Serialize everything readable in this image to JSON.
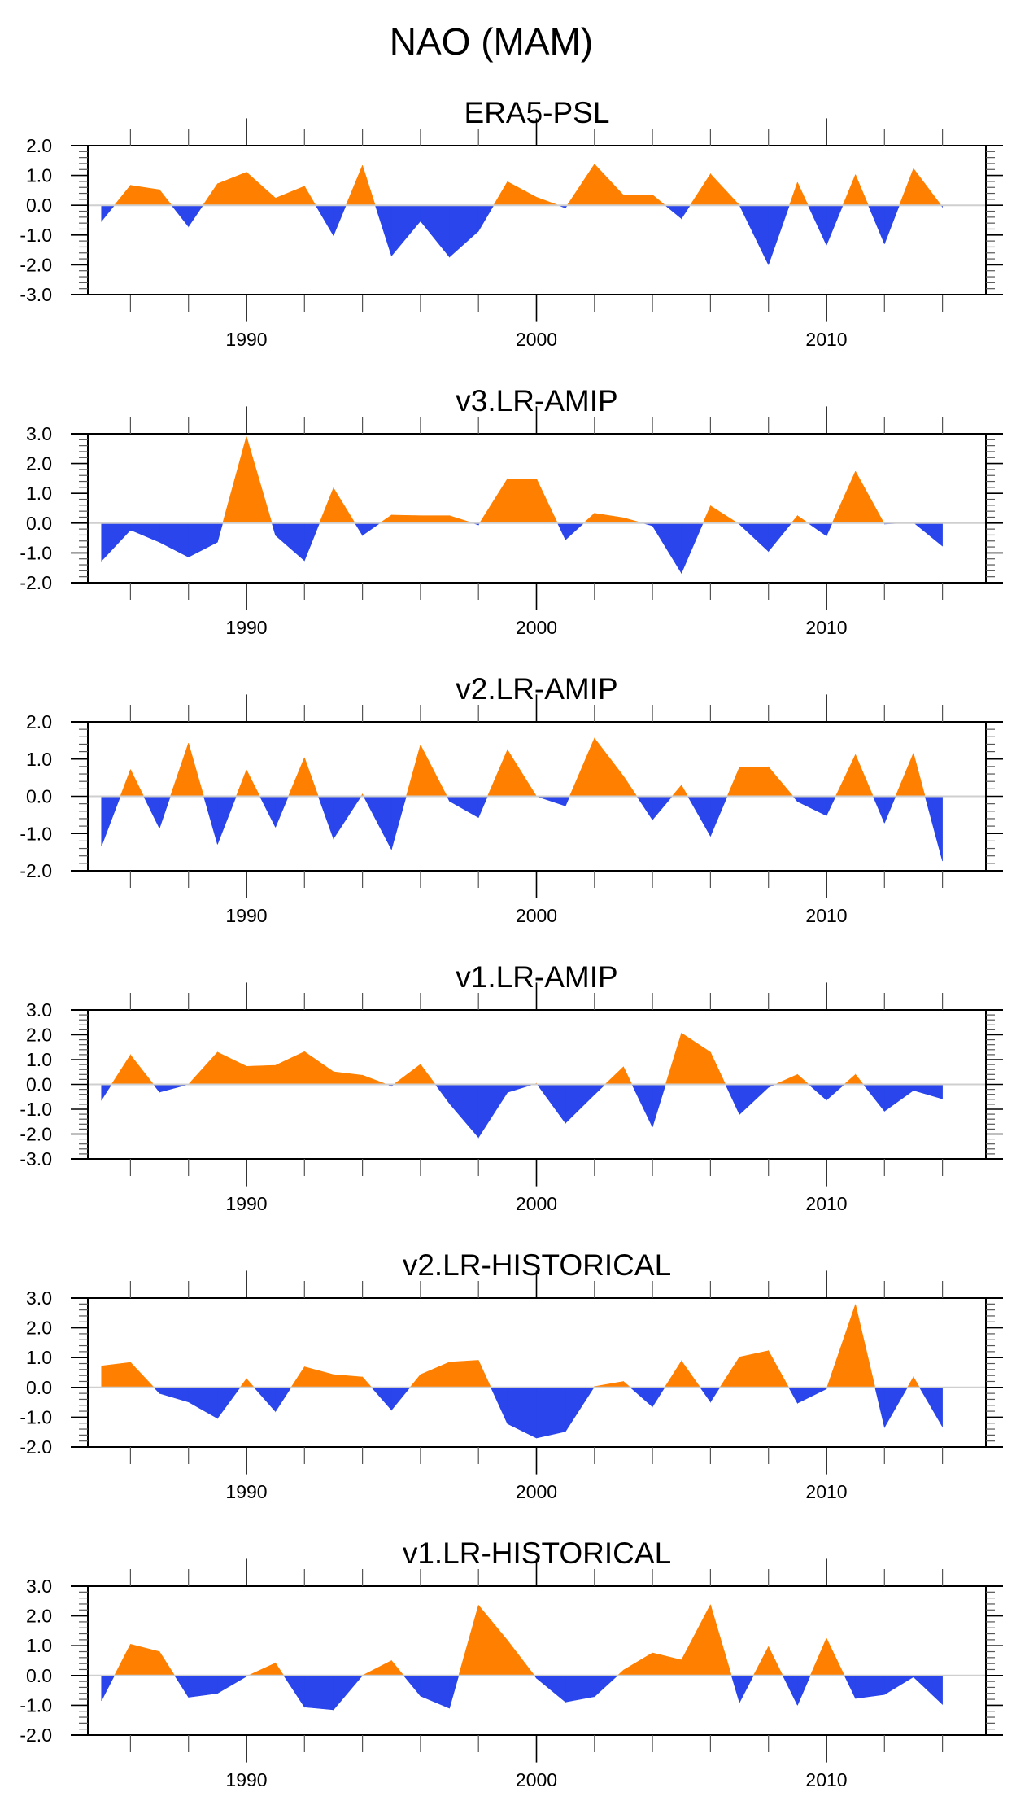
{
  "figure": {
    "title": "NAO (MAM)",
    "colors": {
      "positive": "#ff8000",
      "negative": "#2945eb",
      "zero_line": "#cfcfcf"
    }
  },
  "chart_data": {
    "type": "area",
    "title": "NAO (MAM)",
    "xlabel": "",
    "ylabel": "",
    "x": [
      1985,
      1986,
      1987,
      1988,
      1989,
      1990,
      1991,
      1992,
      1993,
      1994,
      1995,
      1996,
      1997,
      1998,
      1999,
      2000,
      2001,
      2002,
      2003,
      2004,
      2005,
      2006,
      2007,
      2008,
      2009,
      2010,
      2011,
      2012,
      2013,
      2014
    ],
    "xlim": [
      1983.5,
      2015.5
    ],
    "xticks_major": [
      1990,
      2000,
      2010
    ],
    "xtick_labels": [
      "1990",
      "2000",
      "2010"
    ],
    "xticks_minor_step": 2,
    "fill": "positive values orange, negative values blue, relative to zero",
    "panels": [
      {
        "title": "ERA5-PSL",
        "ylim": [
          -3.0,
          2.0
        ],
        "yticks": [
          "2.0",
          "1.0",
          "0.0",
          "-1.0",
          "-2.0",
          "-3.0"
        ],
        "values": [
          -0.54,
          0.67,
          0.52,
          -0.72,
          0.72,
          1.11,
          0.24,
          0.64,
          -1.02,
          1.34,
          -1.7,
          -0.53,
          -1.74,
          -0.87,
          0.79,
          0.27,
          -0.09,
          1.38,
          0.34,
          0.35,
          -0.45,
          1.05,
          0.0,
          -2.0,
          0.77,
          -1.34,
          1.03,
          -1.3,
          1.23,
          -0.06
        ]
      },
      {
        "title": "v3.LR-AMIP",
        "ylim": [
          -2.0,
          3.0
        ],
        "yticks": [
          "3.0",
          "2.0",
          "1.0",
          "0.0",
          "-1.0",
          "-2.0"
        ],
        "values": [
          -1.27,
          -0.23,
          -0.64,
          -1.14,
          -0.64,
          2.91,
          -0.41,
          -1.26,
          1.18,
          -0.41,
          0.27,
          0.25,
          0.25,
          -0.06,
          1.49,
          1.49,
          -0.56,
          0.33,
          0.18,
          -0.09,
          -1.68,
          0.58,
          -0.04,
          -0.95,
          0.25,
          -0.43,
          1.74,
          -0.03,
          0.02,
          -0.77
        ]
      },
      {
        "title": "v2.LR-AMIP",
        "ylim": [
          -2.0,
          2.0
        ],
        "yticks": [
          "2.0",
          "1.0",
          "0.0",
          "-1.0",
          "-2.0"
        ],
        "values": [
          -1.34,
          0.72,
          -0.86,
          1.43,
          -1.29,
          0.71,
          -0.83,
          1.04,
          -1.14,
          0.06,
          -1.43,
          1.38,
          -0.13,
          -0.57,
          1.25,
          0.0,
          -0.26,
          1.56,
          0.54,
          -0.63,
          0.3,
          -1.07,
          0.78,
          0.79,
          -0.14,
          -0.52,
          1.12,
          -0.72,
          1.16,
          -1.74
        ]
      },
      {
        "title": "v1.LR-AMIP",
        "ylim": [
          -3.0,
          3.0
        ],
        "yticks": [
          "3.0",
          "2.0",
          "1.0",
          "0.0",
          "-1.0",
          "-2.0",
          "-3.0"
        ],
        "values": [
          -0.63,
          1.19,
          -0.31,
          0.0,
          1.3,
          0.73,
          0.77,
          1.32,
          0.51,
          0.37,
          -0.07,
          0.81,
          -0.77,
          -2.14,
          -0.32,
          0.04,
          -1.56,
          -0.41,
          0.71,
          -1.72,
          2.07,
          1.3,
          -1.21,
          -0.12,
          0.4,
          -0.63,
          0.4,
          -1.08,
          -0.24,
          -0.58
        ]
      },
      {
        "title": "v2.LR-HISTORICAL",
        "ylim": [
          -2.0,
          3.0
        ],
        "yticks": [
          "3.0",
          "2.0",
          "1.0",
          "0.0",
          "-1.0",
          "-2.0"
        ],
        "values": [
          0.72,
          0.84,
          -0.2,
          -0.49,
          -1.04,
          0.29,
          -0.81,
          0.69,
          0.43,
          0.35,
          -0.76,
          0.43,
          0.85,
          0.91,
          -1.22,
          -1.7,
          -1.48,
          0.03,
          0.2,
          -0.65,
          0.89,
          -0.49,
          1.02,
          1.23,
          -0.53,
          -0.05,
          2.79,
          -1.34,
          0.35,
          -1.32
        ]
      },
      {
        "title": "v1.LR-HISTORICAL",
        "ylim": [
          -2.0,
          3.0
        ],
        "yticks": [
          "3.0",
          "2.0",
          "1.0",
          "0.0",
          "-1.0",
          "-2.0"
        ],
        "values": [
          -0.85,
          1.05,
          0.8,
          -0.73,
          -0.6,
          -0.03,
          0.42,
          -1.06,
          -1.15,
          0.0,
          0.5,
          -0.69,
          -1.1,
          2.36,
          1.18,
          -0.09,
          -0.89,
          -0.71,
          0.18,
          0.76,
          0.52,
          2.38,
          -0.91,
          0.97,
          -1.0,
          1.25,
          -0.77,
          -0.64,
          -0.05,
          -0.97
        ]
      }
    ]
  }
}
